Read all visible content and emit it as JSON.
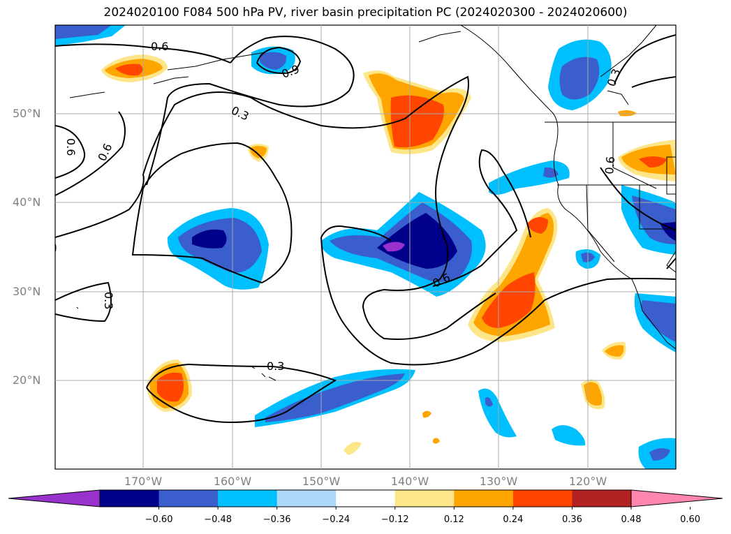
{
  "title": "2024020100 F084 500 hPa PV, river basin precipitation PC (2024020300 - 2024020600)",
  "lat_labels": [
    "50°N",
    "40°N",
    "30°N",
    "20°N"
  ],
  "lon_labels": [
    "170°W",
    "160°W",
    "150°W",
    "140°W",
    "130°W",
    "120°W"
  ],
  "contour_labels": [
    "0.6",
    "0.9",
    "0.3",
    "0.6",
    "0.6",
    "0.3",
    "0.6",
    "0.6",
    "0.3",
    "0.3"
  ],
  "colorbar": {
    "colors": [
      "#9932cc",
      "#00008b",
      "#3a5fcd",
      "#00bfff",
      "#add8f7",
      "#ffffff",
      "#fde68a",
      "#ffa500",
      "#ff4500",
      "#b22222",
      "#ff86b0"
    ],
    "ticks": [
      "−0.60",
      "−0.48",
      "−0.36",
      "−0.24",
      "−0.12",
      "0.12",
      "0.24",
      "0.36",
      "0.48",
      "0.60"
    ]
  }
}
